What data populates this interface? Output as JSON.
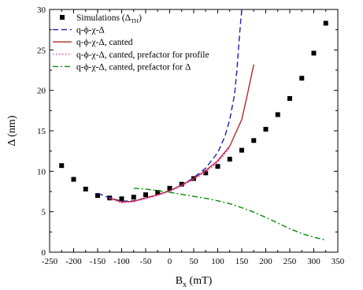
{
  "chart_data": {
    "type": "line",
    "xlabel_main": "B",
    "xlabel_sub": "x",
    "xlabel_unit": " (mT)",
    "ylabel": "Δ (nm)",
    "xlim": [
      -250,
      350
    ],
    "ylim": [
      0,
      30
    ],
    "x_ticks": [
      -250,
      -200,
      -150,
      -100,
      -50,
      0,
      50,
      100,
      150,
      200,
      250,
      300,
      350
    ],
    "y_ticks": [
      0,
      5,
      10,
      15,
      20,
      25,
      30
    ],
    "grid": false,
    "legend_position": "top-left",
    "series": [
      {
        "name_main": "Simulations (Δ",
        "name_sub": "TH",
        "name_tail": ")",
        "kind": "scatter",
        "color": "#000000",
        "x": [
          -225,
          -200,
          -175,
          -150,
          -125,
          -100,
          -75,
          -50,
          -25,
          0,
          25,
          50,
          75,
          100,
          125,
          150,
          175,
          200,
          225,
          250,
          275,
          300,
          325
        ],
        "y": [
          10.7,
          9.0,
          7.8,
          7.0,
          6.7,
          6.6,
          6.8,
          7.1,
          7.4,
          7.9,
          8.4,
          9.1,
          9.8,
          10.6,
          11.5,
          12.6,
          13.8,
          15.2,
          17.0,
          19.0,
          21.5,
          24.6,
          28.3
        ]
      },
      {
        "name": "q-ϕ-χ-Δ",
        "kind": "line",
        "dash": "dash",
        "color": "#1f1fb4",
        "x": [
          -150,
          -125,
          -100,
          -75,
          -50,
          -25,
          0,
          25,
          50,
          75,
          100,
          115,
          125,
          135,
          140,
          145,
          150
        ],
        "y": [
          7.3,
          6.7,
          6.3,
          6.35,
          6.7,
          7.1,
          7.6,
          8.3,
          9.2,
          10.4,
          12.3,
          14.3,
          16.4,
          19.5,
          22.5,
          26.5,
          30.0
        ]
      },
      {
        "name": "q-ϕ-χ-Δ, canted",
        "kind": "line",
        "dash": "solid",
        "color": "#b02a2a",
        "x": [
          -125,
          -100,
          -75,
          -50,
          -25,
          0,
          25,
          50,
          75,
          100,
          125,
          150,
          160,
          170,
          175
        ],
        "y": [
          6.7,
          6.2,
          6.3,
          6.7,
          7.1,
          7.6,
          8.3,
          9.1,
          10.1,
          11.3,
          13.1,
          16.4,
          19.0,
          21.8,
          23.2
        ]
      },
      {
        "name": "q-ϕ-χ-Δ, canted, prefactor for profile",
        "kind": "line",
        "dash": "dot",
        "color": "#ff33cc",
        "x": [
          -125,
          -100,
          -75,
          -50,
          -25,
          0,
          25,
          50,
          75,
          100,
          125
        ],
        "y": [
          6.6,
          6.1,
          6.2,
          6.6,
          7.0,
          7.5,
          8.2,
          9.0,
          9.9,
          11.1,
          12.9
        ]
      },
      {
        "name": "q-ϕ-χ-Δ, canted, prefactor for Δ",
        "kind": "line",
        "dash": "dashdot",
        "color": "#0d8a0d",
        "x": [
          -75,
          -50,
          -25,
          0,
          25,
          50,
          75,
          100,
          125,
          150,
          175,
          200,
          225,
          250,
          275,
          300,
          325
        ],
        "y": [
          7.9,
          7.8,
          7.6,
          7.4,
          7.15,
          6.9,
          6.65,
          6.35,
          6.0,
          5.5,
          4.95,
          4.3,
          3.6,
          2.9,
          2.3,
          1.85,
          1.5
        ]
      }
    ]
  }
}
